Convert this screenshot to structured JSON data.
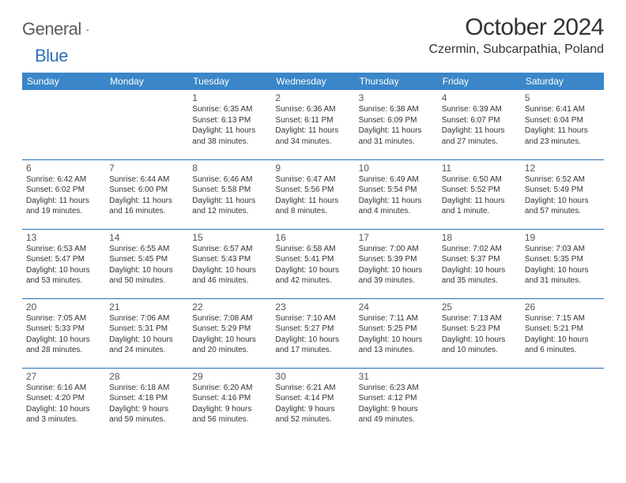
{
  "colors": {
    "header_bg": "#3a86c8",
    "header_text": "#ffffff",
    "row_divider": "#2970b8",
    "body_text": "#333333",
    "daynum_text": "#555555",
    "logo_gray": "#5a5a5a",
    "logo_blue": "#2970b8",
    "background": "#ffffff"
  },
  "typography": {
    "month_title_pt": 30,
    "location_pt": 16,
    "weekday_pt": 12,
    "daynum_pt": 12,
    "cell_text_pt": 10,
    "logo_pt": 22
  },
  "logo": {
    "word1": "General",
    "word2": "Blue"
  },
  "title": "October 2024",
  "location": "Czermin, Subcarpathia, Poland",
  "weekdays": [
    "Sunday",
    "Monday",
    "Tuesday",
    "Wednesday",
    "Thursday",
    "Friday",
    "Saturday"
  ],
  "weeks": [
    [
      null,
      null,
      {
        "day": "1",
        "sunrise": "Sunrise: 6:35 AM",
        "sunset": "Sunset: 6:13 PM",
        "daylight1": "Daylight: 11 hours",
        "daylight2": "and 38 minutes."
      },
      {
        "day": "2",
        "sunrise": "Sunrise: 6:36 AM",
        "sunset": "Sunset: 6:11 PM",
        "daylight1": "Daylight: 11 hours",
        "daylight2": "and 34 minutes."
      },
      {
        "day": "3",
        "sunrise": "Sunrise: 6:38 AM",
        "sunset": "Sunset: 6:09 PM",
        "daylight1": "Daylight: 11 hours",
        "daylight2": "and 31 minutes."
      },
      {
        "day": "4",
        "sunrise": "Sunrise: 6:39 AM",
        "sunset": "Sunset: 6:07 PM",
        "daylight1": "Daylight: 11 hours",
        "daylight2": "and 27 minutes."
      },
      {
        "day": "5",
        "sunrise": "Sunrise: 6:41 AM",
        "sunset": "Sunset: 6:04 PM",
        "daylight1": "Daylight: 11 hours",
        "daylight2": "and 23 minutes."
      }
    ],
    [
      {
        "day": "6",
        "sunrise": "Sunrise: 6:42 AM",
        "sunset": "Sunset: 6:02 PM",
        "daylight1": "Daylight: 11 hours",
        "daylight2": "and 19 minutes."
      },
      {
        "day": "7",
        "sunrise": "Sunrise: 6:44 AM",
        "sunset": "Sunset: 6:00 PM",
        "daylight1": "Daylight: 11 hours",
        "daylight2": "and 16 minutes."
      },
      {
        "day": "8",
        "sunrise": "Sunrise: 6:46 AM",
        "sunset": "Sunset: 5:58 PM",
        "daylight1": "Daylight: 11 hours",
        "daylight2": "and 12 minutes."
      },
      {
        "day": "9",
        "sunrise": "Sunrise: 6:47 AM",
        "sunset": "Sunset: 5:56 PM",
        "daylight1": "Daylight: 11 hours",
        "daylight2": "and 8 minutes."
      },
      {
        "day": "10",
        "sunrise": "Sunrise: 6:49 AM",
        "sunset": "Sunset: 5:54 PM",
        "daylight1": "Daylight: 11 hours",
        "daylight2": "and 4 minutes."
      },
      {
        "day": "11",
        "sunrise": "Sunrise: 6:50 AM",
        "sunset": "Sunset: 5:52 PM",
        "daylight1": "Daylight: 11 hours",
        "daylight2": "and 1 minute."
      },
      {
        "day": "12",
        "sunrise": "Sunrise: 6:52 AM",
        "sunset": "Sunset: 5:49 PM",
        "daylight1": "Daylight: 10 hours",
        "daylight2": "and 57 minutes."
      }
    ],
    [
      {
        "day": "13",
        "sunrise": "Sunrise: 6:53 AM",
        "sunset": "Sunset: 5:47 PM",
        "daylight1": "Daylight: 10 hours",
        "daylight2": "and 53 minutes."
      },
      {
        "day": "14",
        "sunrise": "Sunrise: 6:55 AM",
        "sunset": "Sunset: 5:45 PM",
        "daylight1": "Daylight: 10 hours",
        "daylight2": "and 50 minutes."
      },
      {
        "day": "15",
        "sunrise": "Sunrise: 6:57 AM",
        "sunset": "Sunset: 5:43 PM",
        "daylight1": "Daylight: 10 hours",
        "daylight2": "and 46 minutes."
      },
      {
        "day": "16",
        "sunrise": "Sunrise: 6:58 AM",
        "sunset": "Sunset: 5:41 PM",
        "daylight1": "Daylight: 10 hours",
        "daylight2": "and 42 minutes."
      },
      {
        "day": "17",
        "sunrise": "Sunrise: 7:00 AM",
        "sunset": "Sunset: 5:39 PM",
        "daylight1": "Daylight: 10 hours",
        "daylight2": "and 39 minutes."
      },
      {
        "day": "18",
        "sunrise": "Sunrise: 7:02 AM",
        "sunset": "Sunset: 5:37 PM",
        "daylight1": "Daylight: 10 hours",
        "daylight2": "and 35 minutes."
      },
      {
        "day": "19",
        "sunrise": "Sunrise: 7:03 AM",
        "sunset": "Sunset: 5:35 PM",
        "daylight1": "Daylight: 10 hours",
        "daylight2": "and 31 minutes."
      }
    ],
    [
      {
        "day": "20",
        "sunrise": "Sunrise: 7:05 AM",
        "sunset": "Sunset: 5:33 PM",
        "daylight1": "Daylight: 10 hours",
        "daylight2": "and 28 minutes."
      },
      {
        "day": "21",
        "sunrise": "Sunrise: 7:06 AM",
        "sunset": "Sunset: 5:31 PM",
        "daylight1": "Daylight: 10 hours",
        "daylight2": "and 24 minutes."
      },
      {
        "day": "22",
        "sunrise": "Sunrise: 7:08 AM",
        "sunset": "Sunset: 5:29 PM",
        "daylight1": "Daylight: 10 hours",
        "daylight2": "and 20 minutes."
      },
      {
        "day": "23",
        "sunrise": "Sunrise: 7:10 AM",
        "sunset": "Sunset: 5:27 PM",
        "daylight1": "Daylight: 10 hours",
        "daylight2": "and 17 minutes."
      },
      {
        "day": "24",
        "sunrise": "Sunrise: 7:11 AM",
        "sunset": "Sunset: 5:25 PM",
        "daylight1": "Daylight: 10 hours",
        "daylight2": "and 13 minutes."
      },
      {
        "day": "25",
        "sunrise": "Sunrise: 7:13 AM",
        "sunset": "Sunset: 5:23 PM",
        "daylight1": "Daylight: 10 hours",
        "daylight2": "and 10 minutes."
      },
      {
        "day": "26",
        "sunrise": "Sunrise: 7:15 AM",
        "sunset": "Sunset: 5:21 PM",
        "daylight1": "Daylight: 10 hours",
        "daylight2": "and 6 minutes."
      }
    ],
    [
      {
        "day": "27",
        "sunrise": "Sunrise: 6:16 AM",
        "sunset": "Sunset: 4:20 PM",
        "daylight1": "Daylight: 10 hours",
        "daylight2": "and 3 minutes."
      },
      {
        "day": "28",
        "sunrise": "Sunrise: 6:18 AM",
        "sunset": "Sunset: 4:18 PM",
        "daylight1": "Daylight: 9 hours",
        "daylight2": "and 59 minutes."
      },
      {
        "day": "29",
        "sunrise": "Sunrise: 6:20 AM",
        "sunset": "Sunset: 4:16 PM",
        "daylight1": "Daylight: 9 hours",
        "daylight2": "and 56 minutes."
      },
      {
        "day": "30",
        "sunrise": "Sunrise: 6:21 AM",
        "sunset": "Sunset: 4:14 PM",
        "daylight1": "Daylight: 9 hours",
        "daylight2": "and 52 minutes."
      },
      {
        "day": "31",
        "sunrise": "Sunrise: 6:23 AM",
        "sunset": "Sunset: 4:12 PM",
        "daylight1": "Daylight: 9 hours",
        "daylight2": "and 49 minutes."
      },
      null,
      null
    ]
  ]
}
